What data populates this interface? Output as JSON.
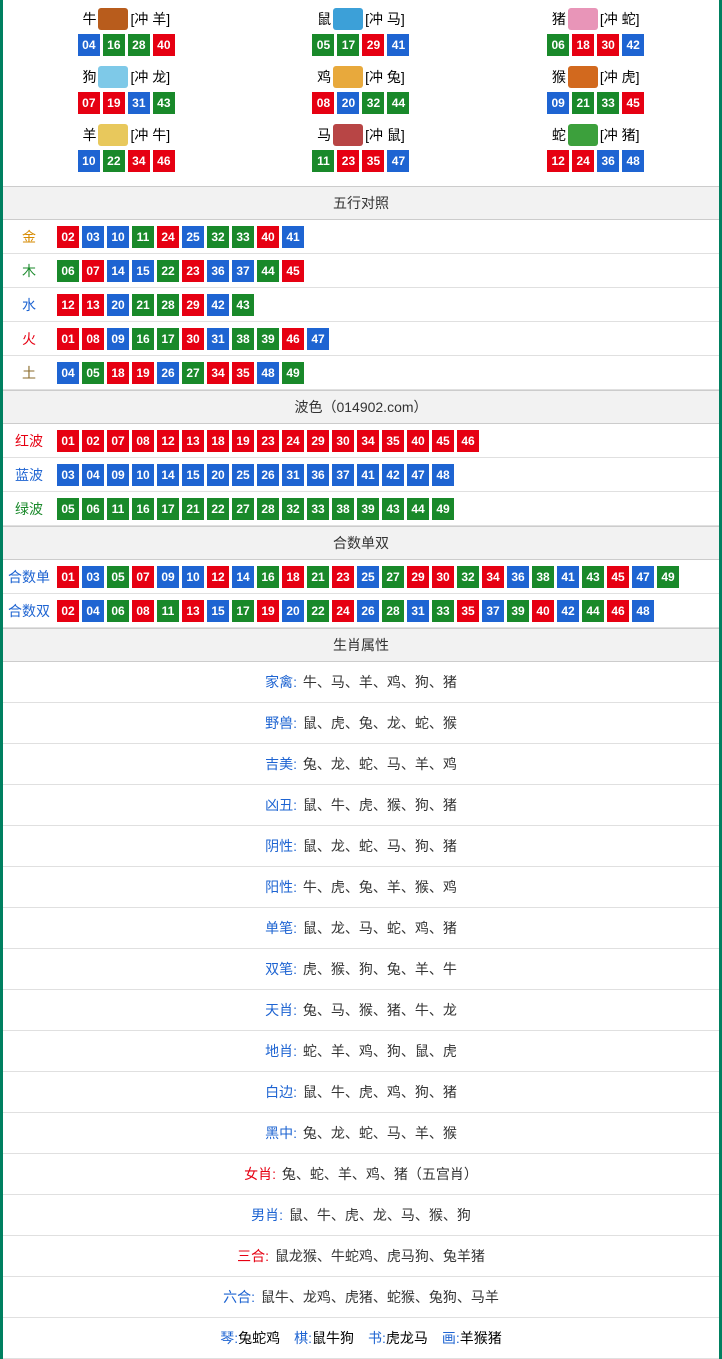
{
  "ball_colors": {
    "red": "#e60012",
    "blue": "#1e64d2",
    "green": "#19892a"
  },
  "colorMap": {
    "01": "red",
    "02": "red",
    "03": "blue",
    "04": "blue",
    "05": "green",
    "06": "green",
    "07": "red",
    "08": "red",
    "09": "blue",
    "10": "blue",
    "11": "green",
    "12": "red",
    "13": "red",
    "14": "blue",
    "15": "blue",
    "16": "green",
    "17": "green",
    "18": "red",
    "19": "red",
    "20": "blue",
    "21": "green",
    "22": "green",
    "23": "red",
    "24": "red",
    "25": "blue",
    "26": "blue",
    "27": "green",
    "28": "green",
    "29": "red",
    "30": "red",
    "31": "blue",
    "32": "green",
    "33": "green",
    "34": "red",
    "35": "red",
    "36": "blue",
    "37": "blue",
    "38": "green",
    "39": "green",
    "40": "red",
    "41": "blue",
    "42": "blue",
    "43": "green",
    "44": "green",
    "45": "red",
    "46": "red",
    "47": "blue",
    "48": "blue",
    "49": "green"
  },
  "zodiac": [
    {
      "name": "牛",
      "clash": "[冲 羊]",
      "icon_color": "#b85c1c",
      "balls": [
        "04",
        "16",
        "28",
        "40"
      ]
    },
    {
      "name": "鼠",
      "clash": "[冲 马]",
      "icon_color": "#3ca0d8",
      "balls": [
        "05",
        "17",
        "29",
        "41"
      ]
    },
    {
      "name": "猪",
      "clash": "[冲 蛇]",
      "icon_color": "#e895b8",
      "balls": [
        "06",
        "18",
        "30",
        "42"
      ]
    },
    {
      "name": "狗",
      "clash": "[冲 龙]",
      "icon_color": "#7ec9e8",
      "balls": [
        "07",
        "19",
        "31",
        "43"
      ]
    },
    {
      "name": "鸡",
      "clash": "[冲 兔]",
      "icon_color": "#e8a93c",
      "balls": [
        "08",
        "20",
        "32",
        "44"
      ]
    },
    {
      "name": "猴",
      "clash": "[冲 虎]",
      "icon_color": "#d2691e",
      "balls": [
        "09",
        "21",
        "33",
        "45"
      ]
    },
    {
      "name": "羊",
      "clash": "[冲 牛]",
      "icon_color": "#e8c85c",
      "balls": [
        "10",
        "22",
        "34",
        "46"
      ]
    },
    {
      "name": "马",
      "clash": "[冲 鼠]",
      "icon_color": "#b84545",
      "balls": [
        "11",
        "23",
        "35",
        "47"
      ]
    },
    {
      "name": "蛇",
      "clash": "[冲 猪]",
      "icon_color": "#3ca03c",
      "balls": [
        "12",
        "24",
        "36",
        "48"
      ]
    }
  ],
  "sections": {
    "wuxing": {
      "title": "五行对照",
      "rows": [
        {
          "label": "金",
          "color": "#d68a00",
          "balls": [
            "02",
            "03",
            "10",
            "11",
            "24",
            "25",
            "32",
            "33",
            "40",
            "41"
          ]
        },
        {
          "label": "木",
          "color": "#19892a",
          "balls": [
            "06",
            "07",
            "14",
            "15",
            "22",
            "23",
            "36",
            "37",
            "44",
            "45"
          ]
        },
        {
          "label": "水",
          "color": "#1e64d2",
          "balls": [
            "12",
            "13",
            "20",
            "21",
            "28",
            "29",
            "42",
            "43"
          ]
        },
        {
          "label": "火",
          "color": "#e60012",
          "balls": [
            "01",
            "08",
            "09",
            "16",
            "17",
            "30",
            "31",
            "38",
            "39",
            "46",
            "47"
          ]
        },
        {
          "label": "土",
          "color": "#8a6a2a",
          "balls": [
            "04",
            "05",
            "18",
            "19",
            "26",
            "27",
            "34",
            "35",
            "48",
            "49"
          ]
        }
      ]
    },
    "bose": {
      "title": "波色（014902.com）",
      "rows": [
        {
          "label": "红波",
          "color": "#e60012",
          "balls": [
            "01",
            "02",
            "07",
            "08",
            "12",
            "13",
            "18",
            "19",
            "23",
            "24",
            "29",
            "30",
            "34",
            "35",
            "40",
            "45",
            "46"
          ]
        },
        {
          "label": "蓝波",
          "color": "#1e64d2",
          "balls": [
            "03",
            "04",
            "09",
            "10",
            "14",
            "15",
            "20",
            "25",
            "26",
            "31",
            "36",
            "37",
            "41",
            "42",
            "47",
            "48"
          ]
        },
        {
          "label": "绿波",
          "color": "#19892a",
          "balls": [
            "05",
            "06",
            "11",
            "16",
            "17",
            "21",
            "22",
            "27",
            "28",
            "32",
            "33",
            "38",
            "39",
            "43",
            "44",
            "49"
          ]
        }
      ]
    },
    "heshu": {
      "title": "合数单双",
      "rows": [
        {
          "label": "合数单",
          "color": "#1e64d2",
          "balls": [
            "01",
            "03",
            "05",
            "07",
            "09",
            "10",
            "12",
            "14",
            "16",
            "18",
            "21",
            "23",
            "25",
            "27",
            "29",
            "30",
            "32",
            "34",
            "36",
            "38",
            "41",
            "43",
            "45",
            "47",
            "49"
          ]
        },
        {
          "label": "合数双",
          "color": "#1e64d2",
          "balls": [
            "02",
            "04",
            "06",
            "08",
            "11",
            "13",
            "15",
            "17",
            "19",
            "20",
            "22",
            "24",
            "26",
            "28",
            "31",
            "33",
            "35",
            "37",
            "39",
            "40",
            "42",
            "44",
            "46",
            "48"
          ]
        }
      ]
    },
    "attrs": {
      "title": "生肖属性",
      "rows": [
        {
          "label": "家禽:",
          "color": "#1e64d2",
          "value": "牛、马、羊、鸡、狗、猪"
        },
        {
          "label": "野兽:",
          "color": "#1e64d2",
          "value": "鼠、虎、兔、龙、蛇、猴"
        },
        {
          "label": "吉美:",
          "color": "#1e64d2",
          "value": "兔、龙、蛇、马、羊、鸡"
        },
        {
          "label": "凶丑:",
          "color": "#1e64d2",
          "value": "鼠、牛、虎、猴、狗、猪"
        },
        {
          "label": "阴性:",
          "color": "#1e64d2",
          "value": "鼠、龙、蛇、马、狗、猪"
        },
        {
          "label": "阳性:",
          "color": "#1e64d2",
          "value": "牛、虎、兔、羊、猴、鸡"
        },
        {
          "label": "单笔:",
          "color": "#1e64d2",
          "value": "鼠、龙、马、蛇、鸡、猪"
        },
        {
          "label": "双笔:",
          "color": "#1e64d2",
          "value": "虎、猴、狗、兔、羊、牛"
        },
        {
          "label": "天肖:",
          "color": "#1e64d2",
          "value": "兔、马、猴、猪、牛、龙"
        },
        {
          "label": "地肖:",
          "color": "#1e64d2",
          "value": "蛇、羊、鸡、狗、鼠、虎"
        },
        {
          "label": "白边:",
          "color": "#1e64d2",
          "value": "鼠、牛、虎、鸡、狗、猪"
        },
        {
          "label": "黑中:",
          "color": "#1e64d2",
          "value": "兔、龙、蛇、马、羊、猴"
        },
        {
          "label": "女肖:",
          "color": "#e60012",
          "value": "兔、蛇、羊、鸡、猪（五宫肖）"
        },
        {
          "label": "男肖:",
          "color": "#1e64d2",
          "value": "鼠、牛、虎、龙、马、猴、狗"
        },
        {
          "label": "三合:",
          "color": "#e60012",
          "value": "鼠龙猴、牛蛇鸡、虎马狗、兔羊猪"
        },
        {
          "label": "六合:",
          "color": "#1e64d2",
          "value": "鼠牛、龙鸡、虎猪、蛇猴、兔狗、马羊"
        }
      ]
    },
    "bottom": {
      "parts": [
        {
          "label": "琴:",
          "value": "兔蛇鸡"
        },
        {
          "label": "棋:",
          "value": "鼠牛狗"
        },
        {
          "label": "书:",
          "value": "虎龙马"
        },
        {
          "label": "画:",
          "value": "羊猴猪"
        }
      ]
    }
  }
}
